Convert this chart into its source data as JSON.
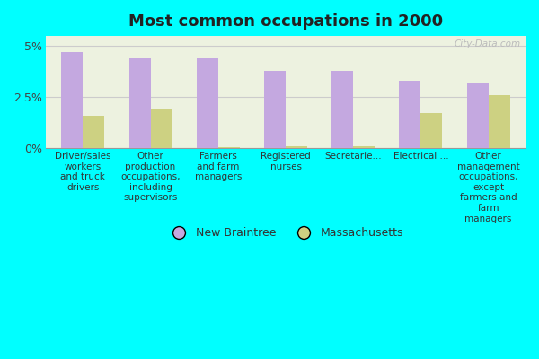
{
  "title": "Most common occupations in 2000",
  "background_color": "#00FFFF",
  "plot_bg_color_top": "#e8f0d8",
  "plot_bg_color_bottom": "#f5f8ee",
  "categories": [
    "Driver/sales\nworkers\nand truck\ndrivers",
    "Other\nproduction\noccupations,\nincluding\nsupervisors",
    "Farmers\nand farm\nmanagers",
    "Registered\nnurses",
    "Secretarie...",
    "Electrical ...",
    "Other\nmanagement\noccupations,\nexcept\nfarmers and\nfarm\nmanagers"
  ],
  "new_braintree": [
    4.7,
    4.4,
    4.4,
    3.8,
    3.8,
    3.3,
    3.2
  ],
  "massachusetts": [
    1.6,
    1.9,
    0.05,
    0.1,
    0.1,
    1.7,
    2.6
  ],
  "nb_color": "#c4a8e0",
  "ma_color": "#cdd182",
  "ylim": [
    0,
    5.5
  ],
  "yticks": [
    0,
    2.5,
    5
  ],
  "ytick_labels": [
    "0%",
    "2.5%",
    "5%"
  ],
  "watermark": "City-Data.com",
  "legend_nb": "New Braintree",
  "legend_ma": "Massachusetts"
}
